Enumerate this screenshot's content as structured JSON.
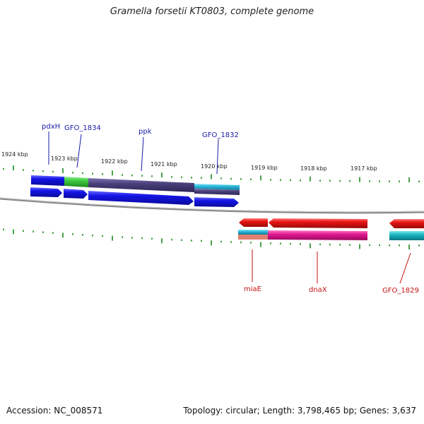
{
  "title": "Gramella forsetii KT0803, complete genome",
  "accession": "Accession: NC_008571",
  "summary": "Topology: circular; Length: 3,798,465 bp; Genes: 3,637",
  "kbp_labels": [
    "1924 kbp",
    "1923 kbp",
    "1922 kbp",
    "1921 kbp",
    "1920 kbp",
    "1919 kbp",
    "1918 kbp",
    "1917 kbp"
  ],
  "gene_labels_top": [
    "pdxH",
    "GFO_1834",
    "ppk",
    "GFO_1832"
  ],
  "gene_labels_bottom": [
    "miaE",
    "dnaX",
    "GFO_1829"
  ],
  "colors": {
    "cds_blue": "#1414e6",
    "green": "#3cc83c",
    "slate": "#4a3f7a",
    "cyan": "#2ab8dc",
    "red": "#e81414",
    "magenta": "#e01890",
    "teal": "#1ab4c0",
    "salmon": "#e08070",
    "tick": "#1a8a1a",
    "backbone": "#7a7a7a"
  }
}
